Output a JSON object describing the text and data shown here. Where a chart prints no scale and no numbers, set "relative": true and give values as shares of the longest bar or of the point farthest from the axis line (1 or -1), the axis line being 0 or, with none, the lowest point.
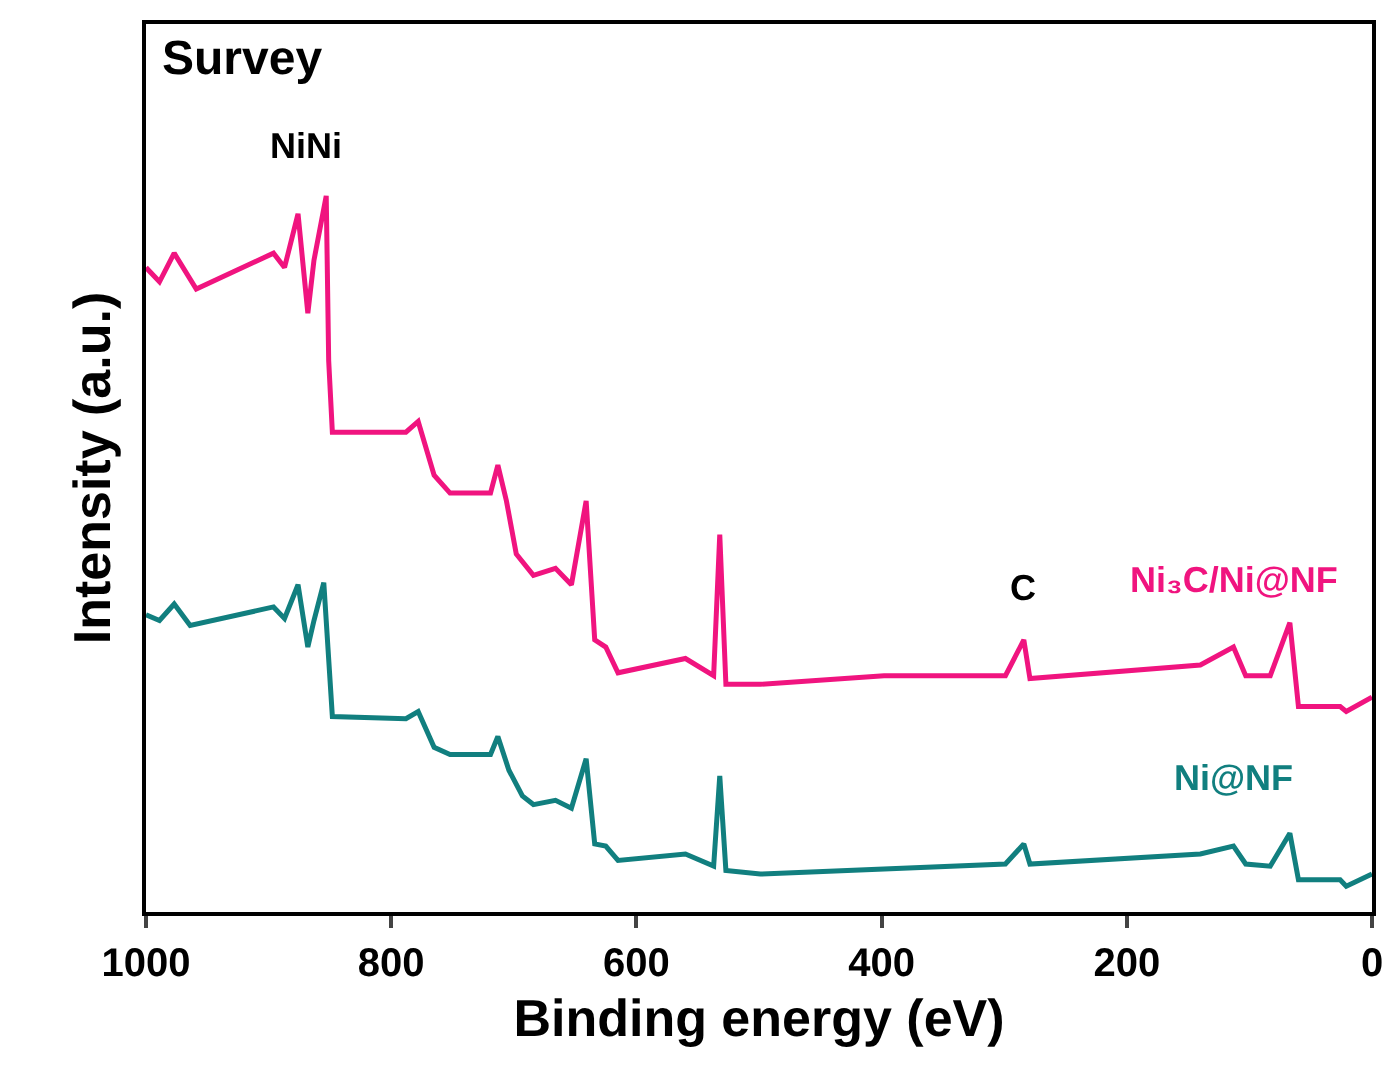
{
  "chart_data": {
    "type": "line",
    "relative": true,
    "xlabel": "Binding energy (eV)",
    "ylabel": "Intensity (a.u.)",
    "xlim": [
      1000,
      0
    ],
    "xticks": [
      1000,
      800,
      600,
      400,
      200,
      0
    ],
    "grid": false,
    "legend": false,
    "marker": "none",
    "line_style": "solid",
    "tick_labels": "x",
    "annotations": [
      "Survey",
      "NiNi",
      {
        "text": "C",
        "x": 284,
        "y": 0.38
      }
    ],
    "series": [
      {
        "name": "Ni₃C/Ni@NF",
        "color": "#f0147f",
        "x": [
          1000,
          989,
          977,
          959,
          896,
          887,
          876,
          868,
          863,
          853,
          851,
          848,
          788,
          778,
          765,
          752,
          719,
          713,
          706,
          698,
          684,
          666,
          653,
          641,
          634,
          625,
          615,
          560,
          537,
          532,
          527,
          499,
          398,
          299,
          284,
          279,
          140,
          113,
          103,
          83,
          67,
          60,
          26,
          21,
          0
        ],
        "values": [
          0.9,
          0.88,
          0.92,
          0.87,
          0.92,
          0.9,
          0.975,
          0.836,
          0.91,
          1,
          0.77,
          0.67,
          0.67,
          0.685,
          0.61,
          0.585,
          0.585,
          0.624,
          0.574,
          0.5,
          0.47,
          0.48,
          0.457,
          0.574,
          0.38,
          0.37,
          0.334,
          0.354,
          0.33,
          0.527,
          0.318,
          0.318,
          0.33,
          0.33,
          0.38,
          0.326,
          0.345,
          0.37,
          0.33,
          0.33,
          0.404,
          0.287,
          0.287,
          0.28,
          0.3
        ]
      },
      {
        "name": "Ni@NF",
        "color": "#117f7f",
        "x": [
          1000,
          989,
          977,
          964,
          896,
          887,
          876,
          868,
          863,
          855,
          848,
          788,
          778,
          765,
          752,
          719,
          713,
          704,
          693,
          684,
          666,
          653,
          641,
          634,
          625,
          615,
          560,
          537,
          532,
          527,
          499,
          299,
          284,
          279,
          140,
          113,
          103,
          83,
          67,
          60,
          26,
          21,
          0
        ],
        "values": [
          0.415,
          0.407,
          0.43,
          0.4,
          0.426,
          0.41,
          0.457,
          0.37,
          0.407,
          0.46,
          0.273,
          0.27,
          0.28,
          0.23,
          0.22,
          0.22,
          0.245,
          0.198,
          0.162,
          0.15,
          0.156,
          0.145,
          0.214,
          0.095,
          0.092,
          0.072,
          0.081,
          0.064,
          0.19,
          0.058,
          0.053,
          0.067,
          0.095,
          0.067,
          0.081,
          0.092,
          0.067,
          0.064,
          0.11,
          0.045,
          0.045,
          0.036,
          0.053
        ]
      }
    ]
  }
}
